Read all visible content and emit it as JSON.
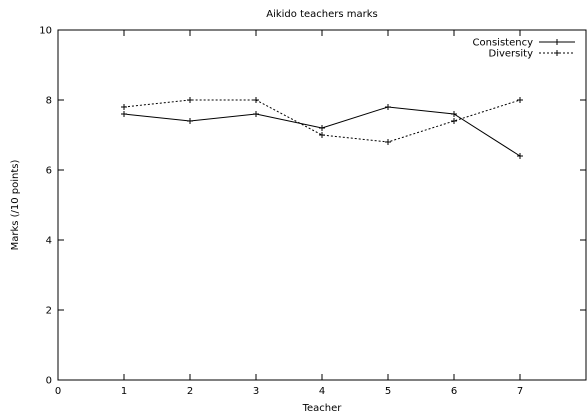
{
  "chart_data": {
    "type": "line",
    "title": "Aikido teachers marks",
    "xlabel": "Teacher",
    "ylabel": "Marks (/10 points)",
    "xlim": [
      0,
      8
    ],
    "ylim": [
      0,
      10
    ],
    "x_ticks": [
      0,
      1,
      2,
      3,
      4,
      5,
      6,
      7
    ],
    "y_ticks": [
      0,
      2,
      4,
      6,
      8,
      10
    ],
    "grid": false,
    "legend_position": "top-right",
    "x": [
      1,
      2,
      3,
      4,
      5,
      6,
      7
    ],
    "series": [
      {
        "name": "Consistency",
        "values": [
          7.6,
          7.4,
          7.6,
          7.2,
          7.8,
          7.6,
          6.4
        ],
        "line_style": "solid",
        "marker": "plus",
        "color": "#000000"
      },
      {
        "name": "Diversity",
        "values": [
          7.8,
          8.0,
          8.0,
          7.0,
          6.8,
          7.4,
          8.0
        ],
        "line_style": "dotted",
        "marker": "plus",
        "color": "#000000"
      }
    ]
  }
}
